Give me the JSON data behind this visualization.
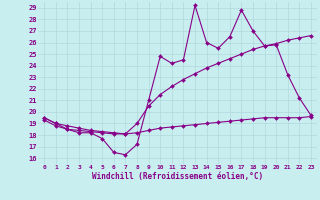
{
  "title": "",
  "xlabel": "Windchill (Refroidissement éolien,°C)",
  "ylabel": "",
  "background_color": "#c8eef0",
  "grid_color": "#b0d8da",
  "line_color": "#880088",
  "xlim": [
    -0.5,
    23.5
  ],
  "ylim": [
    15.5,
    29.5
  ],
  "yticks": [
    16,
    17,
    18,
    19,
    20,
    21,
    22,
    23,
    24,
    25,
    26,
    27,
    28,
    29
  ],
  "xticks": [
    0,
    1,
    2,
    3,
    4,
    5,
    6,
    7,
    8,
    9,
    10,
    11,
    12,
    13,
    14,
    15,
    16,
    17,
    18,
    19,
    20,
    21,
    22,
    23
  ],
  "series1_x": [
    0,
    1,
    2,
    3,
    4,
    5,
    6,
    7,
    8,
    9,
    10,
    11,
    12,
    13,
    14,
    15,
    16,
    17,
    18,
    19,
    20,
    21,
    22,
    23
  ],
  "series1_y": [
    19.5,
    19.0,
    18.5,
    18.2,
    18.2,
    17.7,
    16.5,
    16.3,
    17.2,
    21.0,
    24.8,
    24.2,
    24.5,
    29.2,
    26.0,
    25.5,
    26.5,
    28.8,
    27.0,
    25.7,
    25.8,
    23.2,
    21.2,
    19.7
  ],
  "series2_x": [
    0,
    1,
    2,
    3,
    4,
    5,
    6,
    7,
    8,
    9,
    10,
    11,
    12,
    13,
    14,
    15,
    16,
    17,
    18,
    19,
    20,
    21,
    22,
    23
  ],
  "series2_y": [
    19.5,
    19.0,
    18.8,
    18.6,
    18.4,
    18.3,
    18.2,
    18.1,
    19.0,
    20.5,
    21.5,
    22.2,
    22.8,
    23.3,
    23.8,
    24.2,
    24.6,
    25.0,
    25.4,
    25.7,
    25.9,
    26.2,
    26.4,
    26.6
  ],
  "series3_x": [
    0,
    1,
    2,
    3,
    4,
    5,
    6,
    7,
    8,
    9,
    10,
    11,
    12,
    13,
    14,
    15,
    16,
    17,
    18,
    19,
    20,
    21,
    22,
    23
  ],
  "series3_y": [
    19.3,
    18.8,
    18.5,
    18.4,
    18.3,
    18.2,
    18.1,
    18.1,
    18.2,
    18.4,
    18.6,
    18.7,
    18.8,
    18.9,
    19.0,
    19.1,
    19.2,
    19.3,
    19.4,
    19.5,
    19.5,
    19.5,
    19.5,
    19.6
  ]
}
